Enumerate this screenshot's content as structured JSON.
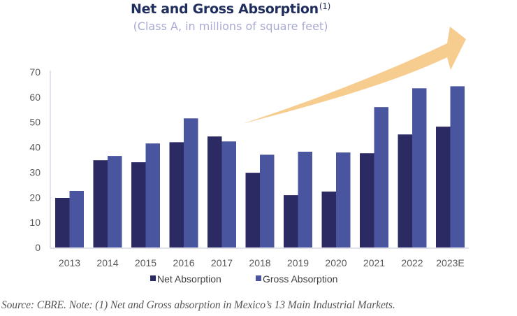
{
  "colors": {
    "title": "#1f2d5c",
    "subtitle": "#a9abd3",
    "net": "#2b2a63",
    "gross": "#4a55a0",
    "arrow": "#f7cc8f",
    "axis": "#d9d9e6",
    "source": "#555555"
  },
  "chart_data": {
    "type": "bar",
    "title": "Net and Gross Absorption",
    "title_superscript": "(1)",
    "subtitle": "(Class A, in millions of square feet)",
    "xlabel": "",
    "ylabel": "",
    "ylim": [
      0,
      70
    ],
    "yticks": [
      0,
      10,
      20,
      30,
      40,
      50,
      60,
      70
    ],
    "grid": false,
    "legend_position": "bottom",
    "categories": [
      "2013",
      "2014",
      "2015",
      "2016",
      "2017",
      "2018",
      "2019",
      "2020",
      "2021",
      "2022",
      "2023E"
    ],
    "series": [
      {
        "name": "Net Absorption",
        "values": [
          19.8,
          34.8,
          34.0,
          42.0,
          44.3,
          29.8,
          20.9,
          22.3,
          37.6,
          45.1,
          48.2
        ]
      },
      {
        "name": "Gross Absorption",
        "values": [
          22.6,
          36.5,
          41.5,
          51.5,
          42.3,
          37.0,
          38.2,
          37.9,
          56.0,
          63.5,
          64.3
        ]
      }
    ],
    "annotations": [
      "upward-trend-arrow"
    ]
  },
  "footer": {
    "source": "Source: CBRE. Note: (1) Net and Gross absorption in Mexico’s 13 Main Industrial Markets."
  }
}
